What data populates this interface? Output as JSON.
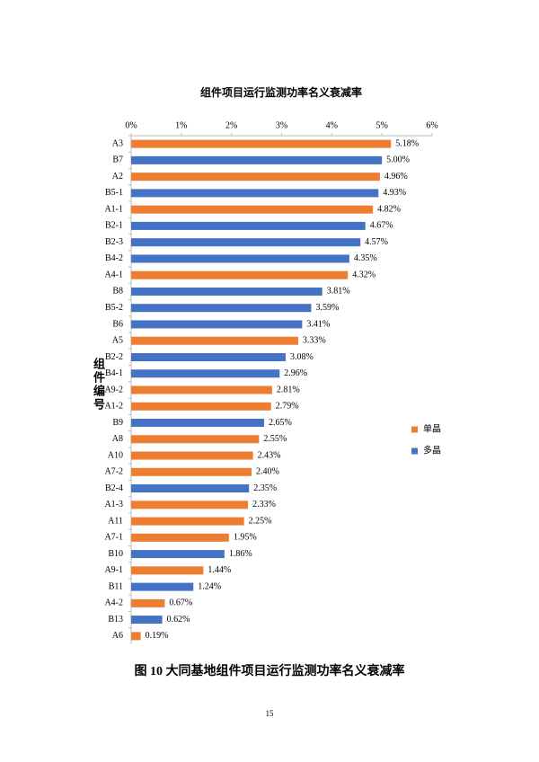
{
  "chart_data": {
    "type": "hbar",
    "title": "组件项目运行监测功率名义衰减率",
    "y_label": "组件编号",
    "categories": [
      "A3",
      "B7",
      "A2",
      "B5-1",
      "A1-1",
      "B2-1",
      "B2-3",
      "B4-2",
      "A4-1",
      "B8",
      "B5-2",
      "B6",
      "A5",
      "B2-2",
      "B4-1",
      "A9-2",
      "A1-2",
      "B9",
      "A8",
      "A10",
      "A7-2",
      "B2-4",
      "A1-3",
      "A11",
      "A7-1",
      "B10",
      "A9-1",
      "B11",
      "A4-2",
      "B13",
      "A6"
    ],
    "series": [
      {
        "name": "单晶",
        "color": "#ed7d31",
        "values": [
          5.18,
          null,
          4.96,
          null,
          4.82,
          null,
          null,
          null,
          4.32,
          null,
          null,
          null,
          3.33,
          null,
          null,
          2.81,
          2.79,
          null,
          2.55,
          2.43,
          2.4,
          null,
          2.33,
          2.25,
          1.95,
          null,
          1.44,
          null,
          0.67,
          null,
          0.19
        ],
        "value_labels": [
          "5.18%",
          null,
          "4.96%",
          null,
          "4.82%",
          null,
          null,
          null,
          "4.32%",
          null,
          null,
          null,
          "3.33%",
          null,
          null,
          "2.81%",
          "2.79%",
          null,
          "2.55%",
          "2.43%",
          "2.40%",
          null,
          "2.33%",
          "2.25%",
          "1.95%",
          null,
          "1.44%",
          null,
          "0.67%",
          null,
          "0.19%"
        ]
      },
      {
        "name": "多晶",
        "color": "#4472c4",
        "values": [
          null,
          5.0,
          null,
          4.93,
          null,
          4.67,
          4.57,
          4.35,
          null,
          3.81,
          3.59,
          3.41,
          null,
          3.08,
          2.96,
          null,
          null,
          2.65,
          null,
          null,
          null,
          2.35,
          null,
          null,
          null,
          1.86,
          null,
          1.24,
          null,
          0.62,
          null
        ],
        "value_labels": [
          null,
          "5.00%",
          null,
          "4.93%",
          null,
          "4.67%",
          "4.57%",
          "4.35%",
          null,
          "3.81%",
          "3.59%",
          "3.41%",
          null,
          "3.08%",
          "2.96%",
          null,
          null,
          "2.65%",
          null,
          null,
          null,
          "2.35%",
          null,
          null,
          null,
          "1.86%",
          null,
          "1.24%",
          null,
          "0.62%",
          null
        ]
      }
    ],
    "xlim": [
      0,
      6
    ],
    "xticks": [
      {
        "value": 0,
        "label": "0%"
      },
      {
        "value": 1,
        "label": "1%"
      },
      {
        "value": 2,
        "label": "2%"
      },
      {
        "value": 3,
        "label": "3%"
      },
      {
        "value": 4,
        "label": "4%"
      },
      {
        "value": 5,
        "label": "5%"
      },
      {
        "value": 6,
        "label": "6%"
      }
    ],
    "legend": "right"
  },
  "caption": "图 10 大同基地组件项目运行监测功率名义衰减率",
  "page_number": "15"
}
